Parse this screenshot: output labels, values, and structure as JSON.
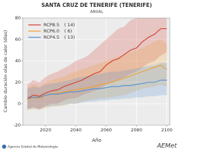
{
  "chart_data": {
    "type": "line",
    "title": "SANTA CRUZ DE TENERIFE (TENERIFE)",
    "subtitle": "ANUAL",
    "y_label": "Cambio duración olas de calor (días)",
    "x_label": "Año",
    "x": [
      2008,
      2012,
      2016,
      2020,
      2024,
      2028,
      2032,
      2036,
      2040,
      2044,
      2048,
      2052,
      2056,
      2060,
      2064,
      2068,
      2072,
      2076,
      2080,
      2084,
      2088,
      2092,
      2096,
      2100
    ],
    "xlim": [
      2005,
      2102
    ],
    "xticks": [
      2020,
      2040,
      2060,
      2080,
      2100
    ],
    "ylim": [
      -20,
      80
    ],
    "yticks": [
      -20,
      0,
      20,
      40,
      60,
      80
    ],
    "grid": true,
    "legend": "upper-left",
    "series": [
      {
        "name": "RCP8.5",
        "legend_note": "( 14)",
        "color": "#d23a2e",
        "values": [
          5,
          8,
          7,
          10,
          12,
          13,
          16,
          18,
          20,
          22,
          25,
          28,
          30,
          36,
          40,
          42,
          46,
          50,
          52,
          58,
          62,
          65,
          70,
          70
        ],
        "upper": [
          18,
          22,
          20,
          25,
          28,
          30,
          33,
          36,
          40,
          42,
          45,
          50,
          55,
          60,
          65,
          70,
          72,
          78,
          80,
          80,
          80,
          80,
          80,
          80
        ],
        "lower": [
          -5,
          -3,
          -5,
          -2,
          0,
          0,
          3,
          5,
          5,
          8,
          10,
          12,
          14,
          18,
          20,
          22,
          25,
          28,
          30,
          34,
          38,
          40,
          45,
          48
        ]
      },
      {
        "name": "RCP6.0",
        "legend_note": "(   6)",
        "color": "#f0a02c",
        "values": [
          4,
          6,
          5,
          8,
          9,
          10,
          11,
          12,
          13,
          14,
          15,
          16,
          18,
          19,
          20,
          22,
          24,
          26,
          28,
          30,
          32,
          34,
          36,
          32
        ],
        "upper": [
          15,
          18,
          16,
          20,
          22,
          24,
          25,
          28,
          30,
          32,
          34,
          36,
          38,
          40,
          42,
          44,
          46,
          48,
          50,
          52,
          55,
          58,
          60,
          55
        ],
        "lower": [
          -6,
          -5,
          -6,
          -4,
          -3,
          -2,
          -2,
          0,
          0,
          2,
          3,
          4,
          5,
          5,
          6,
          7,
          8,
          10,
          12,
          14,
          15,
          16,
          18,
          16
        ]
      },
      {
        "name": "RCP4.5",
        "legend_note": "( 13)",
        "color": "#4d8fd1",
        "values": [
          5,
          6,
          6,
          8,
          9,
          9,
          10,
          11,
          11,
          12,
          13,
          14,
          14,
          15,
          16,
          16,
          17,
          17,
          18,
          19,
          20,
          20,
          22,
          22
        ],
        "upper": [
          14,
          16,
          15,
          18,
          19,
          20,
          21,
          22,
          24,
          25,
          26,
          27,
          28,
          29,
          30,
          30,
          31,
          32,
          33,
          34,
          35,
          36,
          38,
          38
        ],
        "lower": [
          -5,
          -4,
          -5,
          -3,
          -2,
          -2,
          -1,
          0,
          0,
          1,
          2,
          2,
          3,
          3,
          4,
          4,
          5,
          5,
          6,
          6,
          7,
          7,
          8,
          8
        ]
      }
    ]
  },
  "footer": {
    "agency": "Agencia Estatal de Meteorología",
    "logo": "AEMet"
  }
}
